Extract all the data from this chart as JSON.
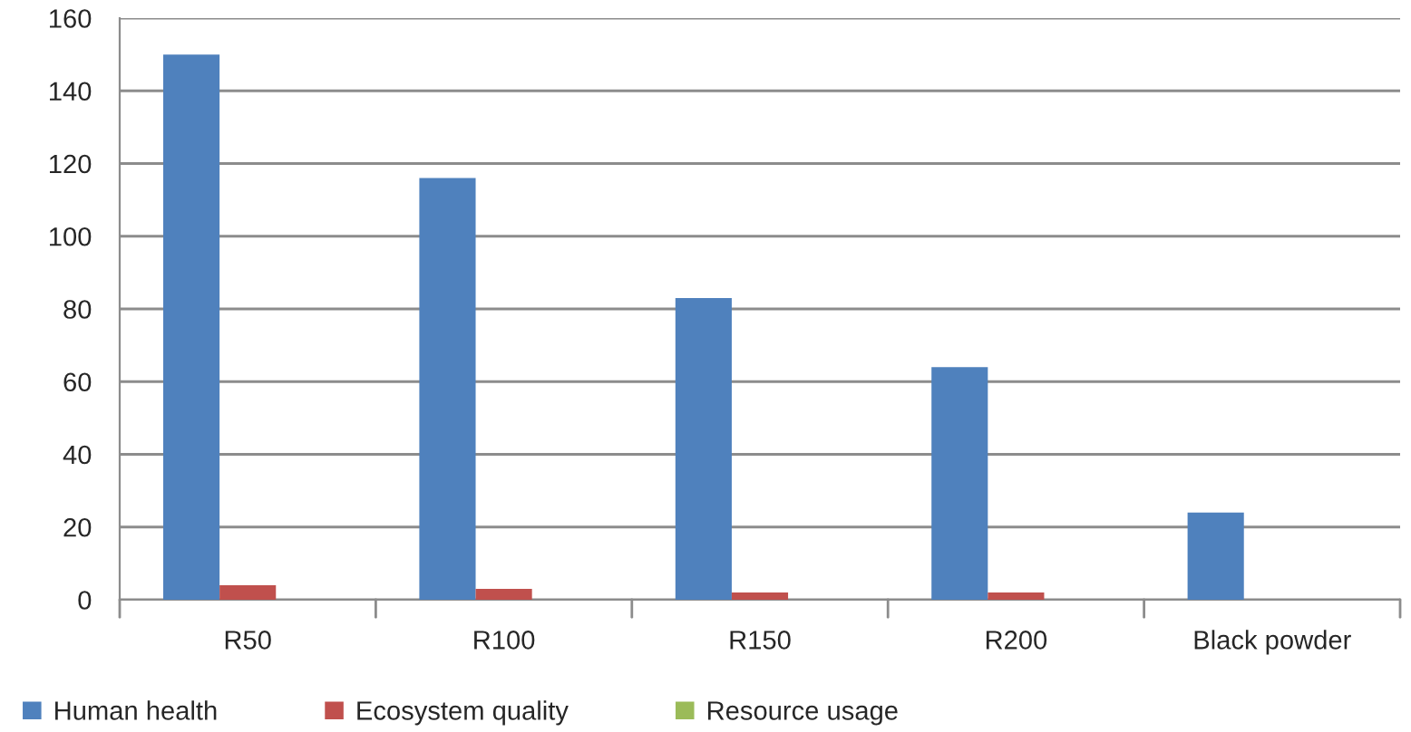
{
  "chart_data": {
    "type": "bar",
    "categories": [
      "R50",
      "R100",
      "R150",
      "R200",
      "Black powder"
    ],
    "series": [
      {
        "name": "Human health",
        "color": "#4f81bd",
        "values": [
          150,
          116,
          83,
          64,
          24
        ]
      },
      {
        "name": "Ecosystem quality",
        "color": "#c0504d",
        "values": [
          4,
          3,
          2,
          2,
          0
        ]
      },
      {
        "name": "Resource usage",
        "color": "#9bbb59",
        "values": [
          0,
          0,
          0,
          0,
          0
        ]
      }
    ],
    "ylim": [
      0,
      160
    ],
    "yticks": [
      0,
      20,
      40,
      60,
      80,
      100,
      120,
      140,
      160
    ],
    "grid": "y",
    "legend": "bottom"
  }
}
